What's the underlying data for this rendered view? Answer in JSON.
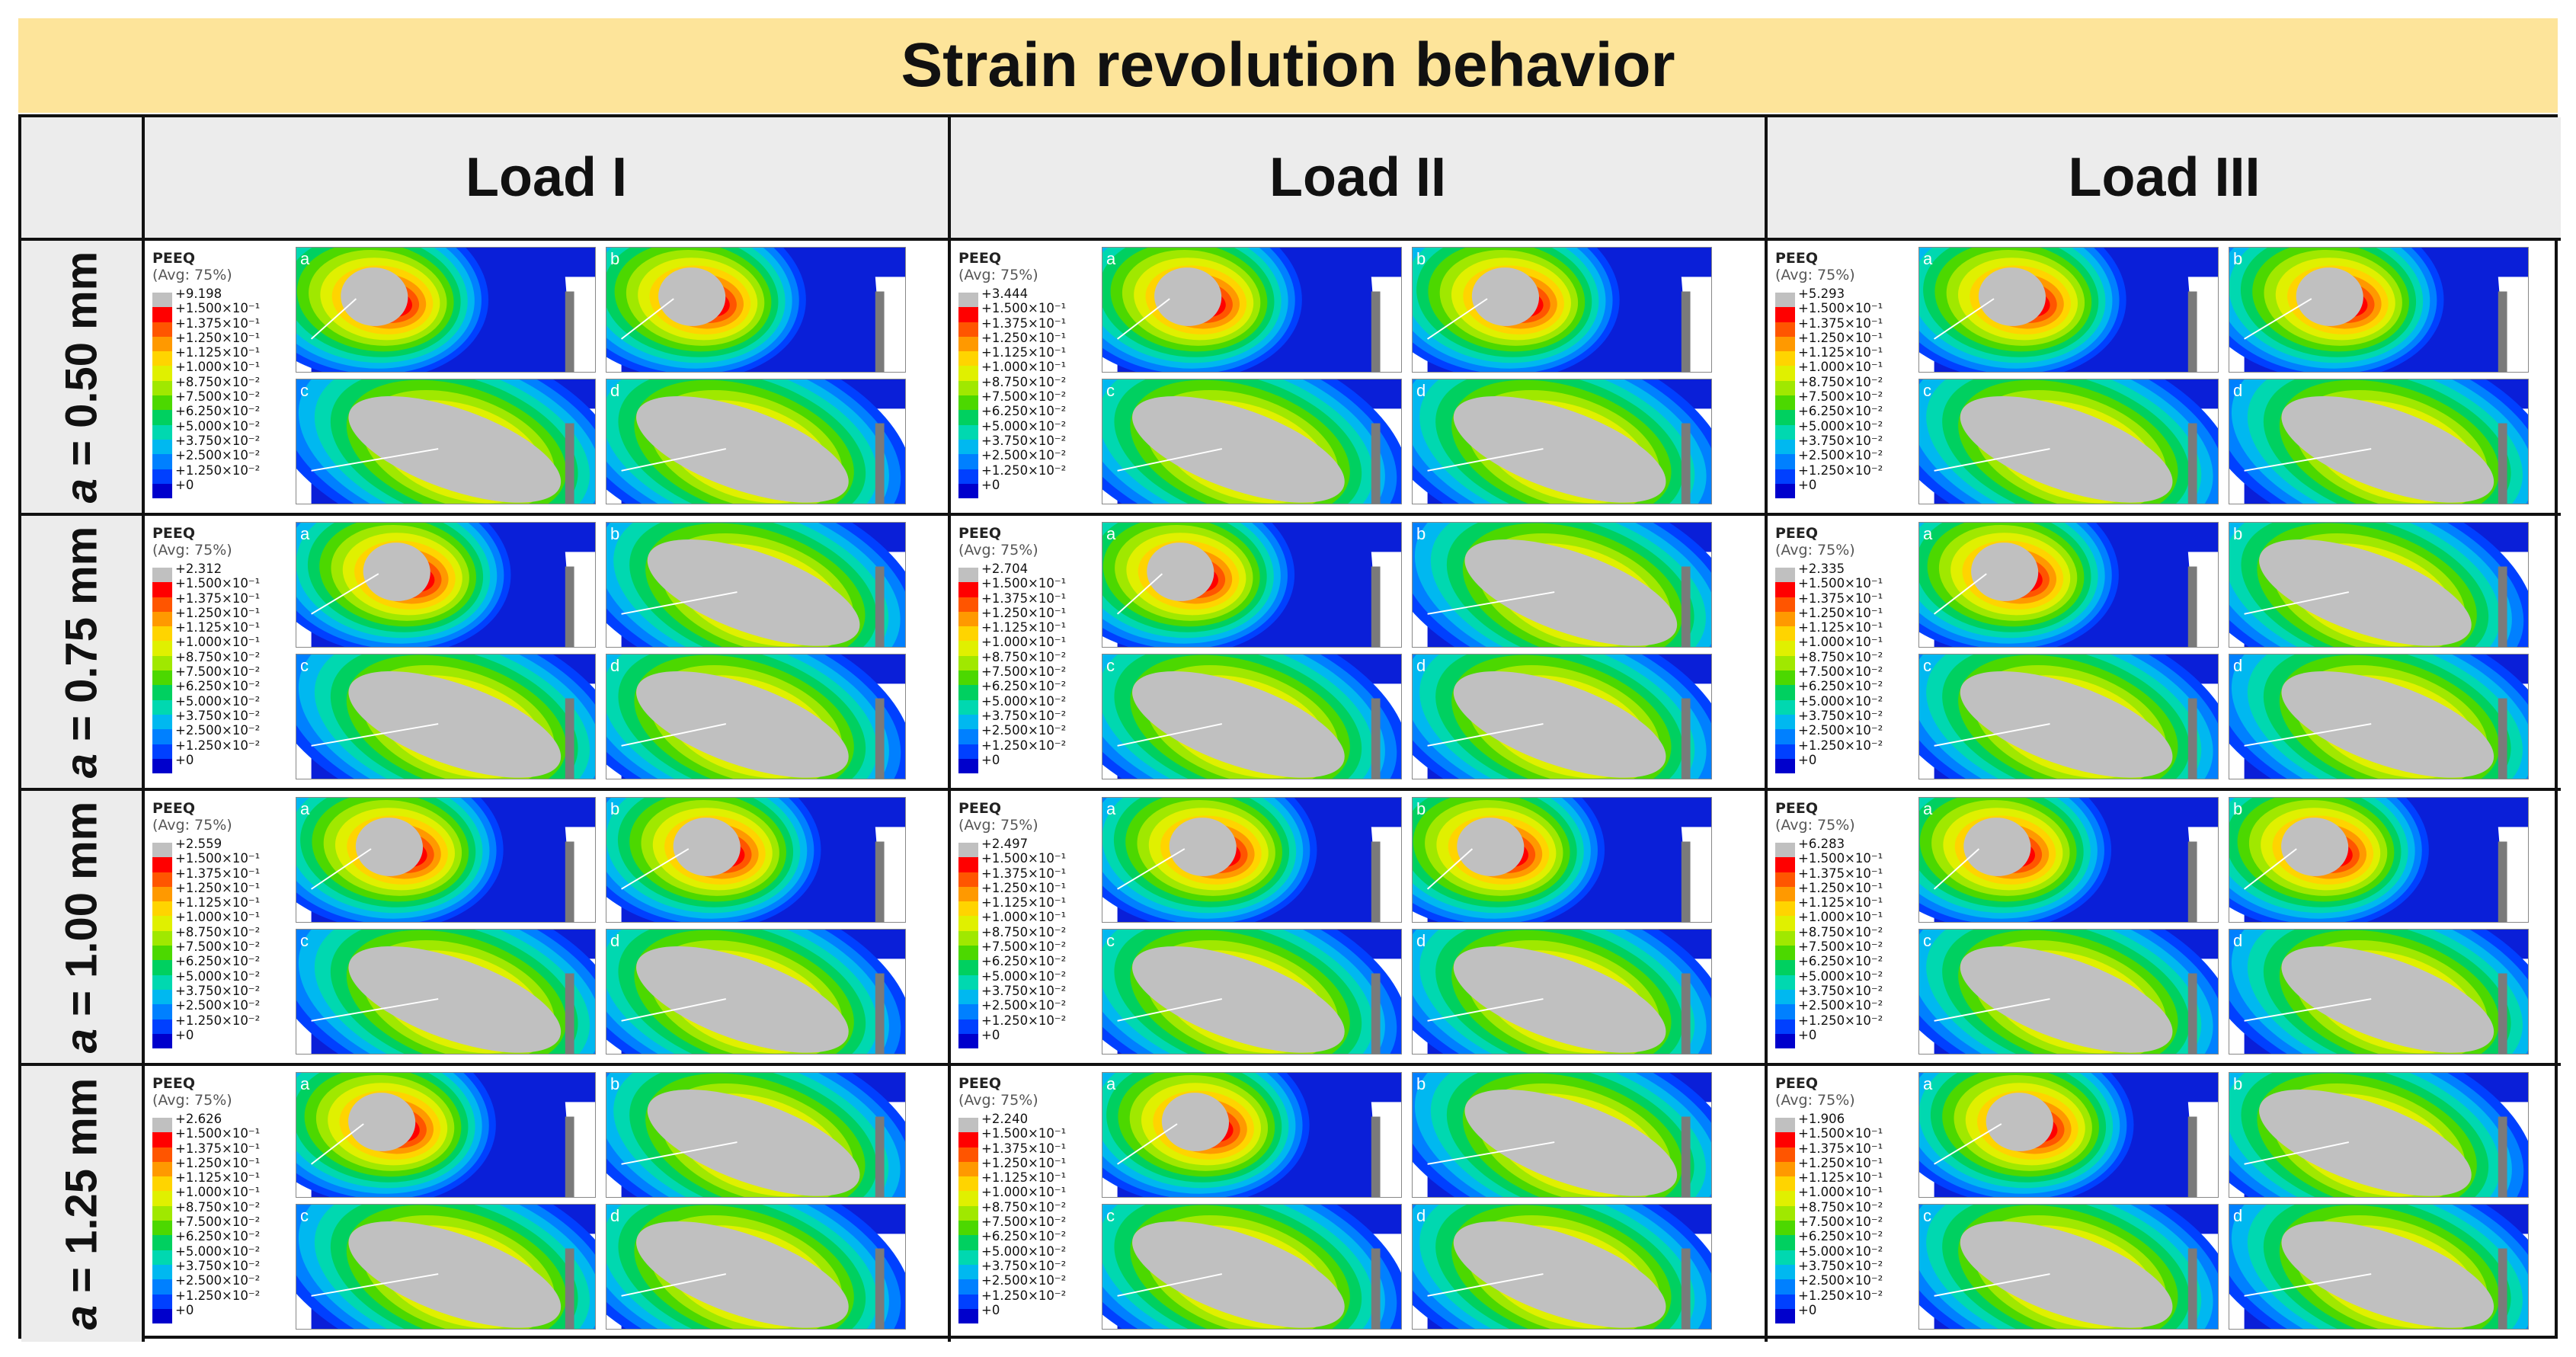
{
  "title": "Strain revolution behavior",
  "columns": [
    "Load I",
    "Load II",
    "Load III"
  ],
  "rows": [
    {
      "prefix": "a",
      "label": " = 0.50 mm"
    },
    {
      "prefix": "a",
      "label": " = 0.75 mm"
    },
    {
      "prefix": "a",
      "label": " = 1.00 mm"
    },
    {
      "prefix": "a",
      "label": " = 1.25 mm"
    }
  ],
  "legend": {
    "title": "PEEQ",
    "average": "(Avg: 75%)",
    "levels": [
      "+1.500×10⁻¹",
      "+1.375×10⁻¹",
      "+1.250×10⁻¹",
      "+1.125×10⁻¹",
      "+1.000×10⁻¹",
      "+8.750×10⁻²",
      "+7.500×10⁻²",
      "+6.250×10⁻²",
      "+5.000×10⁻²",
      "+3.750×10⁻²",
      "+2.500×10⁻²",
      "+1.250×10⁻²",
      "+0"
    ],
    "colors": [
      "#c0c0c0",
      "#ff0000",
      "#ff5500",
      "#ff9900",
      "#ffd400",
      "#e0f000",
      "#a0e800",
      "#4cd800",
      "#00d060",
      "#00d8b0",
      "#00b8f0",
      "#0080ff",
      "#0040ff",
      "#0000cc"
    ]
  },
  "maxima": [
    [
      "+9.198",
      "+3.444",
      "+5.293"
    ],
    [
      "+2.312",
      "+2.704",
      "+2.335"
    ],
    [
      "+2.559",
      "+2.497",
      "+6.283"
    ],
    [
      "+2.626",
      "+2.240",
      "+1.906"
    ]
  ],
  "panel_labels": [
    "a",
    "b",
    "c",
    "d"
  ]
}
